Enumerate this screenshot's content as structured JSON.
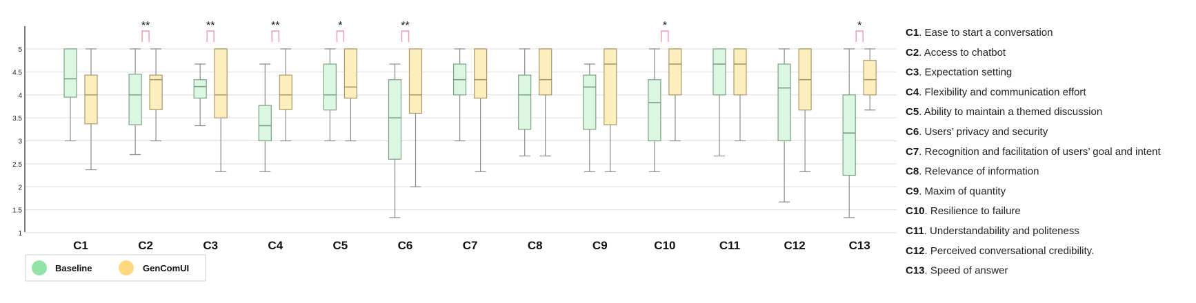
{
  "chart_data": {
    "type": "boxplot",
    "title": "",
    "xlabel": "",
    "ylabel": "",
    "ylim": [
      1,
      5
    ],
    "y_ticks": [
      "1",
      "1.5",
      "2",
      "2.5",
      "3",
      "3.5",
      "4",
      "4.5",
      "5"
    ],
    "grid": true,
    "legend_position": "bottom-left",
    "colors": {
      "baseline_fill": "#dcf7e1",
      "baseline_stroke": "#7aa184",
      "gencomui_fill": "#fdefbd",
      "gencomui_stroke": "#a99769",
      "whisker": "#8a8a8a",
      "bracket": "#f19aa0",
      "grid": "#dddddd"
    },
    "legend": [
      {
        "name": "Baseline",
        "color": "#93e3a6"
      },
      {
        "name": "GenComUI",
        "color": "#fdd87f"
      }
    ],
    "categories": [
      "C1",
      "C2",
      "C3",
      "C4",
      "C5",
      "C6",
      "C7",
      "C8",
      "C9",
      "C10",
      "C11",
      "C12",
      "C13"
    ],
    "descriptions": [
      {
        "code": "C1",
        "text": ". Ease to start a conversation"
      },
      {
        "code": "C2",
        "text": ". Access to chatbot"
      },
      {
        "code": "C3",
        "text": ". Expectation setting"
      },
      {
        "code": "C4",
        "text": ". Flexibility and communication effort"
      },
      {
        "code": "C5",
        "text": ". Ability to maintain a themed discussion"
      },
      {
        "code": "C6",
        "text": ". Users’ privacy and security"
      },
      {
        "code": "C7",
        "text": ". Recognition and facilitation of users’ goal and intent"
      },
      {
        "code": "C8",
        "text": ". Relevance of information"
      },
      {
        "code": "C9",
        "text": ". Maxim of quantity"
      },
      {
        "code": "C10",
        "text": ". Resilience to failure"
      },
      {
        "code": "C11",
        "text": ". Understandability and politeness"
      },
      {
        "code": "C12",
        "text": ". Perceived conversational credibility."
      },
      {
        "code": "C13",
        "text": ". Speed of answer"
      }
    ],
    "significance": [
      "**",
      "**",
      "**",
      "*",
      "**",
      "*",
      "*"
    ],
    "significance_categories": [
      "C2",
      "C3",
      "C4",
      "C5",
      "C6",
      "C10",
      "C13"
    ],
    "series": [
      {
        "name": "Baseline",
        "boxes": [
          {
            "min": 3.0,
            "q1": 3.95,
            "median": 4.35,
            "q3": 5.0,
            "max": 5.0
          },
          {
            "min": 2.7,
            "q1": 3.35,
            "median": 4.0,
            "q3": 4.45,
            "max": 5.0
          },
          {
            "min": 3.33,
            "q1": 3.93,
            "median": 4.18,
            "q3": 4.33,
            "max": 4.67
          },
          {
            "min": 2.33,
            "q1": 3.0,
            "median": 3.33,
            "q3": 3.77,
            "max": 4.67
          },
          {
            "min": 3.0,
            "q1": 3.67,
            "median": 4.0,
            "q3": 4.67,
            "max": 5.0
          },
          {
            "min": 1.33,
            "q1": 2.6,
            "median": 3.5,
            "q3": 4.33,
            "max": 4.67
          },
          {
            "min": 3.0,
            "q1": 4.0,
            "median": 4.33,
            "q3": 4.67,
            "max": 5.0
          },
          {
            "min": 2.67,
            "q1": 3.25,
            "median": 4.0,
            "q3": 4.43,
            "max": 5.0
          },
          {
            "min": 2.33,
            "q1": 3.25,
            "median": 4.17,
            "q3": 4.43,
            "max": 4.67
          },
          {
            "min": 2.33,
            "q1": 3.0,
            "median": 3.83,
            "q3": 4.33,
            "max": 5.0
          },
          {
            "min": 2.67,
            "q1": 4.0,
            "median": 4.67,
            "q3": 5.0,
            "max": 5.0
          },
          {
            "min": 1.67,
            "q1": 3.0,
            "median": 4.15,
            "q3": 4.67,
            "max": 5.0
          },
          {
            "min": 1.33,
            "q1": 2.25,
            "median": 3.17,
            "q3": 4.0,
            "max": 5.0
          }
        ]
      },
      {
        "name": "GenComUI",
        "boxes": [
          {
            "min": 2.37,
            "q1": 3.37,
            "median": 4.0,
            "q3": 4.43,
            "max": 5.0
          },
          {
            "min": 3.0,
            "q1": 3.68,
            "median": 4.33,
            "q3": 4.43,
            "max": 5.0
          },
          {
            "min": 2.33,
            "q1": 3.5,
            "median": 4.0,
            "q3": 5.0,
            "max": 5.0
          },
          {
            "min": 3.0,
            "q1": 3.68,
            "median": 4.0,
            "q3": 4.43,
            "max": 5.0
          },
          {
            "min": 3.0,
            "q1": 3.93,
            "median": 4.17,
            "q3": 5.0,
            "max": 5.0
          },
          {
            "min": 2.0,
            "q1": 3.6,
            "median": 4.0,
            "q3": 5.0,
            "max": 5.0
          },
          {
            "min": 2.33,
            "q1": 3.93,
            "median": 4.33,
            "q3": 5.0,
            "max": 5.0
          },
          {
            "min": 2.67,
            "q1": 4.0,
            "median": 4.33,
            "q3": 5.0,
            "max": 5.0
          },
          {
            "min": 2.33,
            "q1": 3.35,
            "median": 4.67,
            "q3": 5.0,
            "max": 5.0
          },
          {
            "min": 3.0,
            "q1": 4.0,
            "median": 4.67,
            "q3": 5.0,
            "max": 5.0
          },
          {
            "min": 3.0,
            "q1": 4.0,
            "median": 4.67,
            "q3": 5.0,
            "max": 5.0
          },
          {
            "min": 2.33,
            "q1": 3.67,
            "median": 4.33,
            "q3": 5.0,
            "max": 5.0
          },
          {
            "min": 3.67,
            "q1": 4.0,
            "median": 4.33,
            "q3": 4.75,
            "max": 5.0
          }
        ]
      }
    ]
  }
}
